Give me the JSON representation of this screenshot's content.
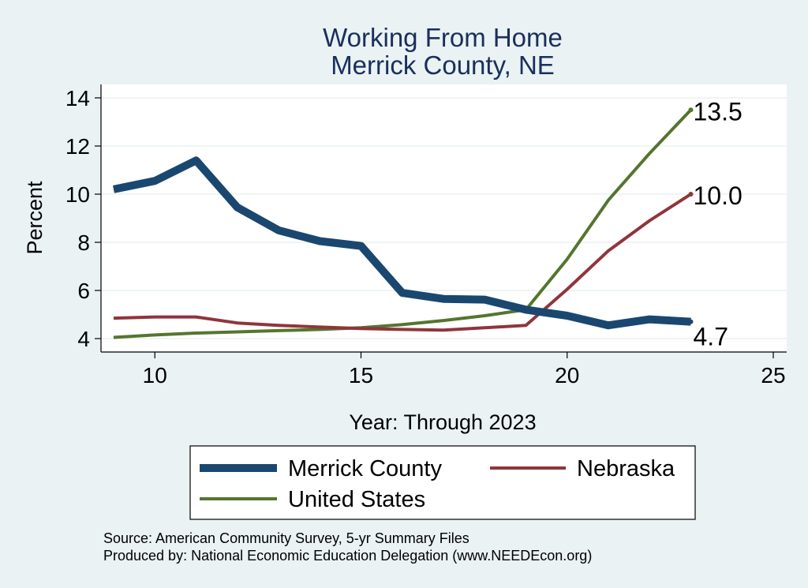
{
  "chart_data": {
    "type": "line",
    "title": "Working From Home",
    "subtitle": "Merrick County, NE",
    "xlabel": "Year: Through 2023",
    "ylabel": "Percent",
    "xlim": [
      9,
      25
    ],
    "ylim": [
      3.5,
      14.5
    ],
    "xticks": [
      10,
      15,
      20,
      25
    ],
    "yticks": [
      4,
      6,
      8,
      10,
      12,
      14
    ],
    "grid": true,
    "legend_position": "bottom",
    "x": [
      9,
      10,
      11,
      12,
      13,
      14,
      15,
      16,
      17,
      18,
      19,
      20,
      21,
      22,
      23
    ],
    "series": [
      {
        "name": "Merrick County",
        "color": "#1a476f",
        "values": [
          10.2,
          10.55,
          11.4,
          9.45,
          8.5,
          8.05,
          7.85,
          5.9,
          5.65,
          5.62,
          5.2,
          4.95,
          4.55,
          4.8,
          4.7
        ],
        "end_label": "4.7"
      },
      {
        "name": "Nebraska",
        "color": "#90353b",
        "values": [
          4.85,
          4.9,
          4.9,
          4.65,
          4.55,
          4.48,
          4.42,
          4.38,
          4.35,
          4.45,
          4.55,
          6.05,
          7.65,
          8.9,
          10.0
        ],
        "end_label": "10.0"
      },
      {
        "name": "United States",
        "color": "#55752f",
        "values": [
          4.05,
          4.15,
          4.23,
          4.28,
          4.33,
          4.38,
          4.45,
          4.58,
          4.75,
          4.95,
          5.2,
          7.3,
          9.75,
          11.7,
          13.5
        ],
        "end_label": "13.5"
      }
    ]
  },
  "footer": {
    "source": "Source: American Community Survey, 5-yr Summary Files",
    "produced_by": "Produced by: National Economic Education Delegation (www.NEEDEcon.org)"
  }
}
